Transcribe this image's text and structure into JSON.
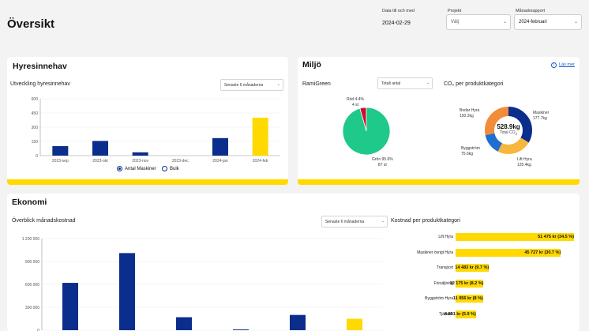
{
  "page": {
    "title": "Översikt"
  },
  "filters": {
    "date": {
      "label": "Data till och med",
      "value": "2024-02-29"
    },
    "project": {
      "label": "Projekt",
      "value": "Välj"
    },
    "report": {
      "label": "Månadsrapport",
      "value": "2024-februari"
    }
  },
  "hyresinnehav": {
    "title": "Hyresinnehav",
    "subtitle": "Utveckling hyresinnehav",
    "period_select": "Senaste 6 månaderna",
    "legend": [
      {
        "label": "Antal Maskiner",
        "selected": true
      },
      {
        "label": "Bulk",
        "selected": false
      }
    ],
    "chart_data": {
      "type": "bar",
      "categories": [
        "2023-sep",
        "2023-okt",
        "2023-nov",
        "2023-dec",
        "2024-jan",
        "2024-feb"
      ],
      "values": [
        100,
        155,
        35,
        0,
        185,
        400
      ],
      "colors": [
        "#0b2d8c",
        "#0b2d8c",
        "#0b2d8c",
        "#0b2d8c",
        "#0b2d8c",
        "#ffd900"
      ],
      "yticks": [
        "0",
        "150",
        "300",
        "450",
        "600"
      ],
      "ylim": [
        0,
        600
      ]
    }
  },
  "miljo": {
    "title": "Miljö",
    "read_more": "Läs mer",
    "rami_title": "RamiGreen",
    "rami_select": "Totalt antal",
    "co2_title": "CO₂ per produktkategori",
    "rami_chart": {
      "type": "pie",
      "slices": [
        {
          "name": "Röd",
          "percent": 4.4,
          "count": "4 st",
          "label_pct": "Röd 4.4%",
          "color": "#c8102e"
        },
        {
          "name": "Grön",
          "percent": 95.6,
          "count": "87 st",
          "label_pct": "Grön 95.6%",
          "color": "#1ec98a"
        }
      ]
    },
    "co2_chart": {
      "type": "pie",
      "center_value": "528.9kg",
      "center_label": "Total CO",
      "center_sub": "2",
      "slices": [
        {
          "name": "Maskiner",
          "value": "177.7kg",
          "amount": 177.7,
          "color": "#0b2d8c"
        },
        {
          "name": "Lift Hyra",
          "value": "125.4kg",
          "amount": 125.4,
          "color": "#f6b73c"
        },
        {
          "name": "Byggström",
          "value": "75.6kg",
          "amount": 75.6,
          "color": "#1f6fd1"
        },
        {
          "name": "Bodar Hyra",
          "value": "150.2kg",
          "amount": 150.2,
          "color": "#f28c38"
        }
      ]
    }
  },
  "ekonomi": {
    "title": "Ekonomi",
    "overview_title": "Överblick månadskostnad",
    "period_select": "Senaste 6 månaderna",
    "cost_title": "Kostnad per produktkategori",
    "chart_data": {
      "type": "bar",
      "values": [
        620000,
        1010000,
        170000,
        10000,
        200000,
        150000
      ],
      "colors": [
        "#0b2d8c",
        "#0b2d8c",
        "#0b2d8c",
        "#0b2d8c",
        "#0b2d8c",
        "#ffd900"
      ],
      "yticks": [
        "0",
        "300 000",
        "600 000",
        "900 000",
        "1 200 000"
      ],
      "ylim": [
        0,
        1200000
      ]
    },
    "categories": [
      {
        "label": "Lift Hyra",
        "amount": 51475,
        "value": "51 475 kr (34.5 %)"
      },
      {
        "label": "Maskiner övrigt Hyra",
        "amount": 45727,
        "value": "45 727 kr (30.7 %)"
      },
      {
        "label": "Transport",
        "amount": 14483,
        "value": "14 483 kr (9.7 %)"
      },
      {
        "label": "Försäljning",
        "amount": 12175,
        "value": "12 175 kr (8.2 %)"
      },
      {
        "label": "Byggström Hyra",
        "amount": 11956,
        "value": "11 956 kr (8 %)"
      },
      {
        "label": "Tjänster",
        "amount": 8851,
        "value": "8 851 kr (5.9 %)"
      }
    ]
  }
}
